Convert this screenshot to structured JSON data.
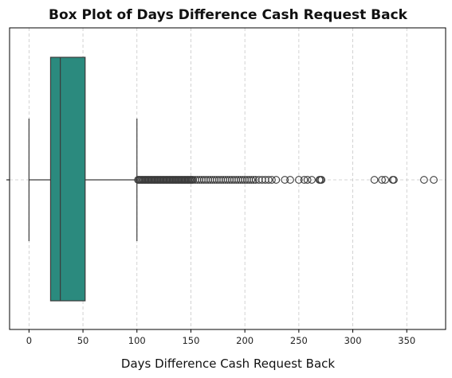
{
  "chart_data": {
    "type": "box",
    "title": "Box Plot of Days Difference Cash Request Back",
    "xlabel": "Days Difference Cash Request Back",
    "ylabel": "",
    "orientation": "horizontal",
    "xlim": [
      -18,
      386
    ],
    "xticks": [
      0,
      50,
      100,
      150,
      200,
      250,
      300,
      350
    ],
    "xtick_labels": [
      "0",
      "50",
      "100",
      "150",
      "200",
      "250",
      "300",
      "350"
    ],
    "grid": true,
    "box_color": "#2b8a7e",
    "stats": {
      "whisker_low": 0,
      "q1": 20,
      "median": 29,
      "q3": 52,
      "whisker_high": 100
    },
    "outliers": [
      101,
      102,
      103,
      104,
      105,
      106,
      107,
      108,
      109,
      110,
      111,
      112,
      113,
      114,
      115,
      116,
      117,
      118,
      119,
      120,
      121,
      122,
      123,
      124,
      125,
      126,
      127,
      128,
      129,
      130,
      131,
      132,
      133,
      134,
      135,
      136,
      137,
      138,
      139,
      140,
      141,
      142,
      143,
      144,
      145,
      146,
      147,
      148,
      149,
      150,
      151,
      152,
      154,
      156,
      158,
      160,
      162,
      164,
      166,
      168,
      170,
      172,
      174,
      176,
      178,
      180,
      182,
      184,
      186,
      188,
      190,
      192,
      194,
      196,
      198,
      200,
      202,
      204,
      206,
      208,
      210,
      213,
      216,
      219,
      222,
      225,
      229,
      237,
      242,
      250,
      255,
      258,
      262,
      269,
      270,
      271,
      320,
      327,
      330,
      337,
      338,
      366,
      375
    ]
  }
}
